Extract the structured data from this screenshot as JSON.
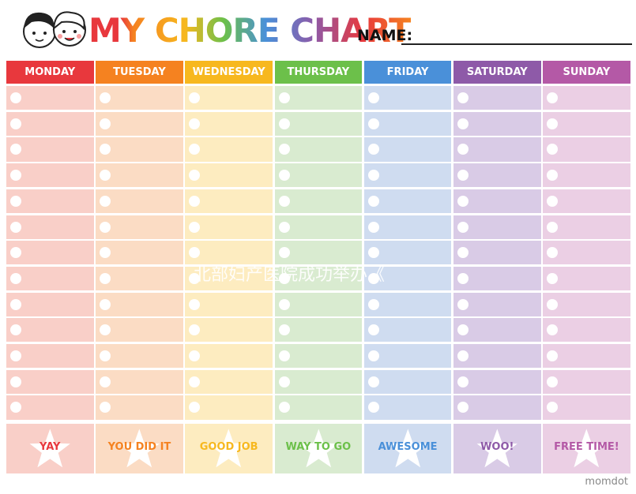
{
  "header": {
    "title": "MY CHORE CHART",
    "name_label": "NAME:"
  },
  "days": [
    {
      "name": "MONDAY",
      "footer": "YAY",
      "color": "#e8383d",
      "cell_color": "#f9cfc8"
    },
    {
      "name": "TUESDAY",
      "footer": "YOU DID IT",
      "color": "#f58220",
      "cell_color": "#fbdcc4"
    },
    {
      "name": "WEDNESDAY",
      "footer": "GOOD JOB",
      "color": "#f7b81f",
      "cell_color": "#fdecc0"
    },
    {
      "name": "THURSDAY",
      "footer": "WAY TO GO",
      "color": "#6cc04a",
      "cell_color": "#d9ebd0"
    },
    {
      "name": "FRIDAY",
      "footer": "AWESOME",
      "color": "#4a90d9",
      "cell_color": "#cfdcf0"
    },
    {
      "name": "SATURDAY",
      "footer": "WOO!",
      "color": "#8e5aa8",
      "cell_color": "#d9cbe6"
    },
    {
      "name": "SUNDAY",
      "footer": "FREE TIME!",
      "color": "#b459a6",
      "cell_color": "#ebcfe4"
    }
  ],
  "brand": "momdot",
  "watermark": "北部妇产医院成功举办《"
}
